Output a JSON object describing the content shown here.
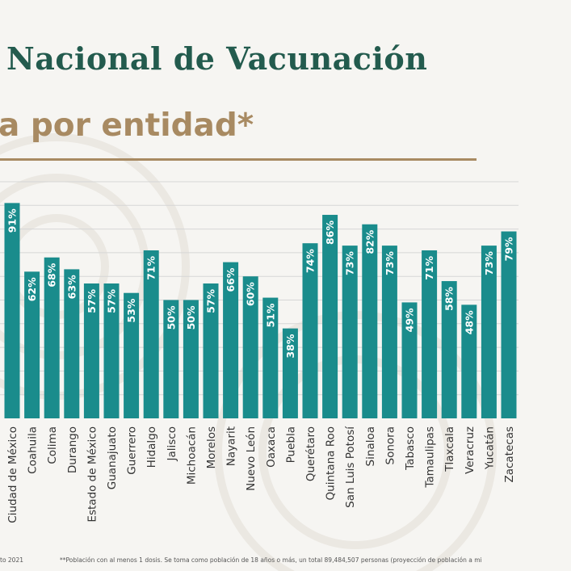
{
  "header": {
    "title": "Nacional de Vacunación",
    "subtitle": "a por entidad*"
  },
  "footer": {
    "date": "to  2021",
    "note": "**Población con al menos 1 dosis. Se toma como población de 18 años o más, un total 89,484,507 personas (proyección de población a mi"
  },
  "colors": {
    "bar": "#1a8c8c",
    "label": "#ffffff",
    "title": "#235b4e",
    "subtitle": "#a88a62",
    "grid": "#d6d6d6"
  },
  "chart_data": {
    "type": "bar",
    "title": "",
    "xlabel": "",
    "ylabel": "",
    "ylim": [
      0,
      100
    ],
    "grid": true,
    "categories": [
      "Ciudad de México",
      "Coahuila",
      "Colima",
      "Durango",
      "Estado de México",
      "Guanajuato",
      "Guerrero",
      "Hidalgo",
      "Jalisco",
      "Michoacán",
      "Morelos",
      "Nayarit",
      "Nuevo León",
      "Oaxaca",
      "Puebla",
      "Querétaro",
      "Quintana Roo",
      "San Luis Potosí",
      "Sinaloa",
      "Sonora",
      "Tabasco",
      "Tamaulipas",
      "Tlaxcala",
      "Veracruz",
      "Yucatán",
      "Zacatecas"
    ],
    "values": [
      91,
      62,
      68,
      63,
      57,
      57,
      53,
      71,
      50,
      50,
      57,
      66,
      60,
      51,
      38,
      74,
      86,
      73,
      82,
      73,
      49,
      71,
      58,
      48,
      73,
      79
    ],
    "labels": [
      "91%",
      "62%",
      "68%",
      "63%",
      "57%",
      "57%",
      "53%",
      "71%",
      "50%",
      "50%",
      "57%",
      "66%",
      "60%",
      "51%",
      "38%",
      "74%",
      "86%",
      "73%",
      "82%",
      "73%",
      "49%",
      "71%",
      "58%",
      "48%",
      "73%",
      "79%"
    ]
  }
}
